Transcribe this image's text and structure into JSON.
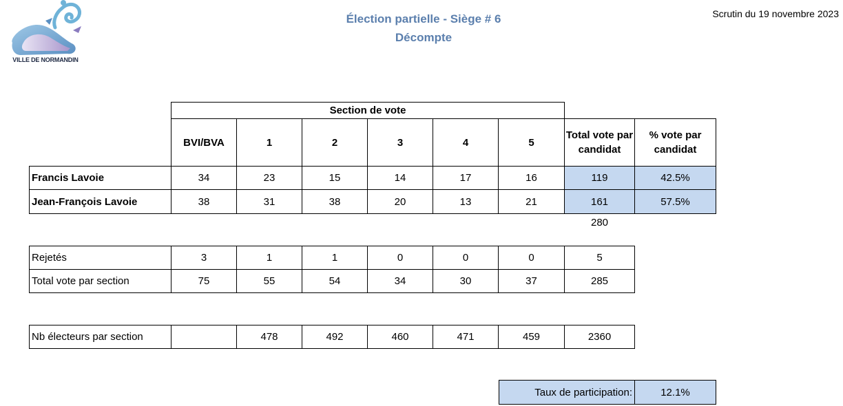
{
  "header": {
    "title": "Élection partielle - Siège # 6",
    "subtitle": "Décompte",
    "date": "Scrutin du 19 novembre 2023",
    "logo_text": "VILLE DE NORMANDIN"
  },
  "table": {
    "section_header": "Section de vote",
    "columns": [
      "BVI/BVA",
      "1",
      "2",
      "3",
      "4",
      "5"
    ],
    "total_header": "Total vote par candidat",
    "pct_header": "% vote par candidat",
    "candidates": [
      {
        "name": "Francis Lavoie",
        "values": [
          "34",
          "23",
          "15",
          "14",
          "17",
          "16"
        ],
        "total": "119",
        "pct": "42.5%"
      },
      {
        "name": "Jean-François Lavoie",
        "values": [
          "38",
          "31",
          "38",
          "20",
          "13",
          "21"
        ],
        "total": "161",
        "pct": "57.5%"
      }
    ],
    "grand_total": "280",
    "rejected": {
      "label": "Rejetés",
      "values": [
        "3",
        "1",
        "1",
        "0",
        "0",
        "0"
      ],
      "total": "5"
    },
    "total_section": {
      "label": "Total vote par section",
      "values": [
        "75",
        "55",
        "54",
        "34",
        "30",
        "37"
      ],
      "total": "285"
    },
    "electors": {
      "label": "Nb électeurs par section",
      "values": [
        "",
        "478",
        "492",
        "460",
        "471",
        "459"
      ],
      "total": "2360"
    },
    "participation": {
      "label": "Taux de participation:",
      "value": "12.1%"
    }
  },
  "colors": {
    "highlight": "#c5d8f0",
    "title": "#5b7fad"
  }
}
